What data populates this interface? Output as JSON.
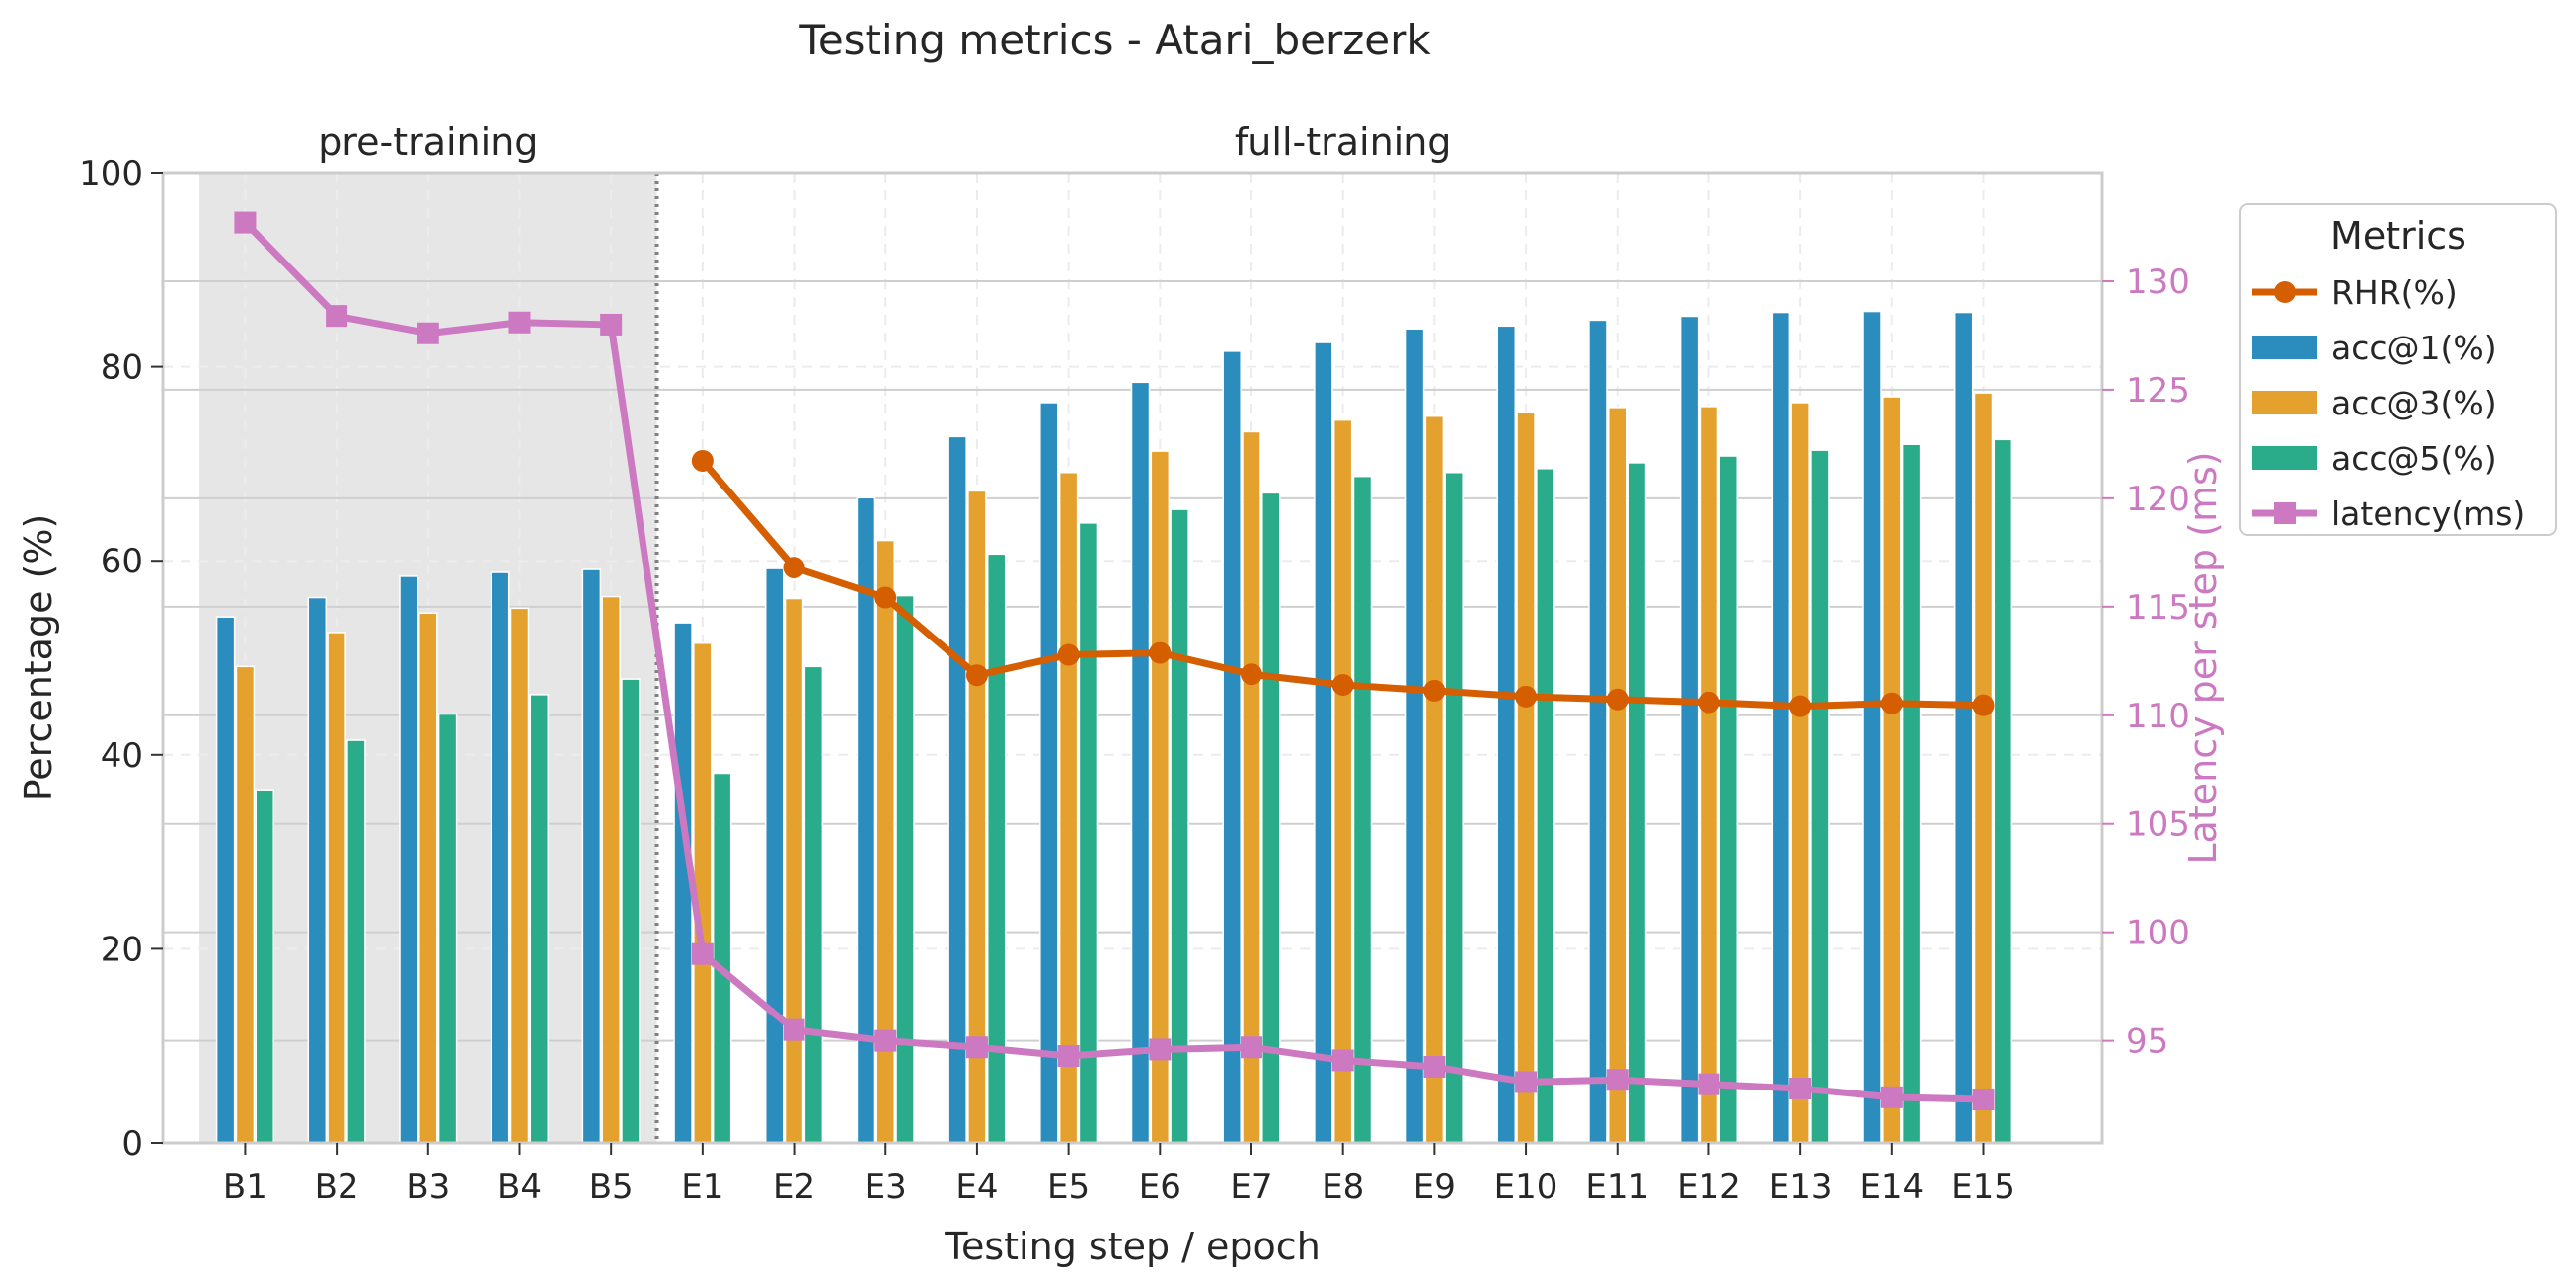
{
  "chart_data": {
    "type": "bar",
    "title": "Testing metrics - Atari_berzerk",
    "xlabel": "Testing step / epoch",
    "ylabel": "Percentage (%)",
    "y2label": "Latency per step (ms)",
    "ylim": [
      0,
      100
    ],
    "y2lim": [
      90.3,
      135.0
    ],
    "yticks": [
      0,
      20,
      40,
      60,
      80,
      100
    ],
    "y2ticks": [
      95,
      100,
      105,
      110,
      115,
      120,
      125,
      130
    ],
    "grid": true,
    "legend": {
      "title": "Metrics",
      "placement": "upper right, outside plot"
    },
    "regions": [
      {
        "label": "pre-training",
        "from": "B1",
        "to": "B5",
        "shaded": true
      },
      {
        "label": "full-training",
        "from": "E1",
        "to": "E15",
        "shaded": false
      }
    ],
    "categories": [
      "B1",
      "B2",
      "B3",
      "B4",
      "B5",
      "E1",
      "E2",
      "E3",
      "E4",
      "E5",
      "E6",
      "E7",
      "E8",
      "E9",
      "E10",
      "E11",
      "E12",
      "E13",
      "E14",
      "E15"
    ],
    "series": [
      {
        "name": "RHR(%)",
        "kind": "line",
        "axis": "left",
        "color": "#d55e00",
        "values": [
          null,
          null,
          null,
          null,
          null,
          70.3,
          59.3,
          56.2,
          48.2,
          50.3,
          50.5,
          48.3,
          47.2,
          46.6,
          46.0,
          45.7,
          45.4,
          45.0,
          45.3,
          45.1
        ]
      },
      {
        "name": "acc@1(%)",
        "kind": "bar",
        "axis": "left",
        "color": "#2b8cbe",
        "values": [
          54.2,
          56.2,
          58.4,
          58.8,
          59.1,
          53.6,
          59.2,
          66.5,
          72.8,
          76.3,
          78.4,
          81.6,
          82.5,
          83.9,
          84.2,
          84.8,
          85.2,
          85.6,
          85.7,
          85.6
        ]
      },
      {
        "name": "acc@3(%)",
        "kind": "bar",
        "axis": "left",
        "color": "#e5a12e",
        "values": [
          49.1,
          52.6,
          54.6,
          55.1,
          56.3,
          51.5,
          56.1,
          62.1,
          67.2,
          69.1,
          71.3,
          73.3,
          74.5,
          74.9,
          75.3,
          75.8,
          75.9,
          76.3,
          76.9,
          77.3
        ]
      },
      {
        "name": "acc@5(%)",
        "kind": "bar",
        "axis": "left",
        "color": "#2aac8a",
        "values": [
          36.3,
          41.5,
          44.2,
          46.2,
          47.8,
          38.1,
          49.1,
          56.4,
          60.7,
          63.9,
          65.3,
          67.0,
          68.7,
          69.1,
          69.5,
          70.1,
          70.8,
          71.4,
          72.0,
          72.5
        ]
      },
      {
        "name": "latency(ms)",
        "kind": "line",
        "axis": "right",
        "color": "#cc79c1",
        "values": [
          132.7,
          128.4,
          127.6,
          128.1,
          128.0,
          99.0,
          95.5,
          95.0,
          94.7,
          94.3,
          94.6,
          94.7,
          94.1,
          93.8,
          93.1,
          93.2,
          93.0,
          92.8,
          92.4,
          92.3
        ]
      }
    ]
  }
}
